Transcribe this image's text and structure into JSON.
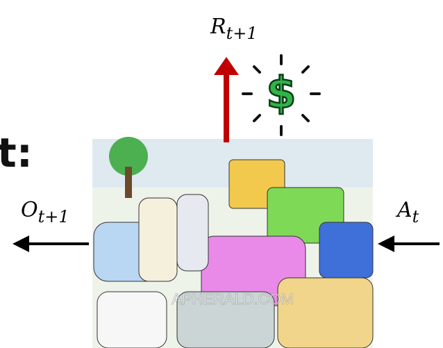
{
  "side_text": "t:",
  "labels": {
    "reward": {
      "symbol": "R",
      "subscript": "t+1"
    },
    "observation": {
      "symbol": "O",
      "subscript": "t+1"
    },
    "action": {
      "symbol": "A",
      "subscript": "t"
    }
  },
  "icon": "$",
  "watermark": "APHERALD.COM"
}
